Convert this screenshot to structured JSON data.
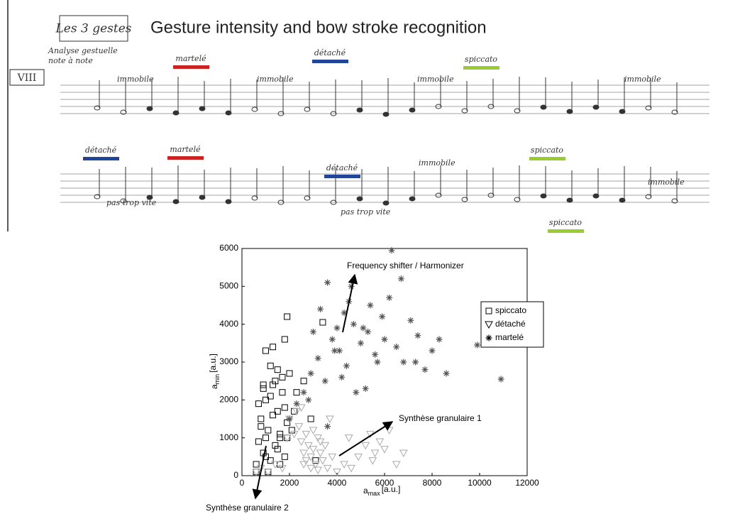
{
  "score": {
    "title": "Gesture intensity and bow stroke recognition",
    "box_label": "Les 3 gestes",
    "notes": [
      "Analyse gestuelle",
      "note à note"
    ],
    "roman": "VIII",
    "strokes": [
      {
        "label": "martelé",
        "color": "#cc2222"
      },
      {
        "label": "détaché",
        "color": "#22449a"
      },
      {
        "label": "spiccato",
        "color": "#99cc33"
      },
      {
        "label": "détaché",
        "color": "#22449a"
      },
      {
        "label": "martelé",
        "color": "#cc2222"
      },
      {
        "label": "détaché",
        "color": "#22449a"
      },
      {
        "label": "spiccato",
        "color": "#99cc33"
      },
      {
        "label": "spiccato",
        "color": "#99cc33"
      }
    ],
    "directions": [
      "immobile",
      "immobile",
      "immobile",
      "immobile",
      "immobile",
      "immobile",
      "pas trop vite",
      "pas trop vite"
    ]
  },
  "chart_data": {
    "type": "scatter",
    "xlabel": {
      "base": "a",
      "sub": "max",
      "unit": "[a.u.]"
    },
    "ylabel": {
      "base": "a",
      "sub": "min",
      "unit": "[a.u.]"
    },
    "xlim": [
      0,
      12000
    ],
    "xticks": [
      0,
      2000,
      4000,
      6000,
      8000,
      10000,
      12000
    ],
    "ylim": [
      0,
      6000
    ],
    "yticks": [
      0,
      1000,
      2000,
      3000,
      4000,
      5000,
      6000
    ],
    "legend": "upper right",
    "annotations": [
      "Frequency shifter / Harmonizer",
      "Synthèse granulaire 1",
      "Synthèse granulaire 2"
    ],
    "series": [
      {
        "name": "spiccato",
        "color": "#000000",
        "marker": "square",
        "x": [
          600,
          700,
          800,
          900,
          1000,
          1100,
          1200,
          1300,
          1400,
          1500,
          1600,
          1700,
          1800,
          1900,
          2000,
          700,
          900,
          1100,
          1300,
          1500,
          1700,
          1900,
          800,
          1000,
          1200,
          1400,
          1600,
          1800,
          2100,
          2300,
          2600,
          2900,
          3100,
          1000,
          1300,
          1800,
          1900,
          3400,
          1500,
          1200,
          900,
          600,
          2200,
          1000,
          1600
        ],
        "values": [
          300,
          900,
          1500,
          600,
          2000,
          1200,
          400,
          2400,
          800,
          1700,
          1100,
          2600,
          500,
          1400,
          2700,
          1900,
          2300,
          100,
          1600,
          700,
          2200,
          1000,
          1300,
          500,
          2100,
          2500,
          300,
          1800,
          1200,
          2200,
          2500,
          1500,
          400,
          3300,
          3400,
          3600,
          4200,
          4050,
          2800,
          2900,
          2400,
          100,
          1700,
          1000,
          1000
        ]
      },
      {
        "name": "détaché",
        "color": "#aaaaaa",
        "marker": "triangle",
        "x": [
          600,
          800,
          1100,
          1400,
          1700,
          2000,
          2300,
          2500,
          2600,
          2700,
          2800,
          2900,
          3000,
          3100,
          3200,
          3300,
          3400,
          3500,
          3600,
          3800,
          2400,
          2700,
          3000,
          3300,
          2600,
          2900,
          3200,
          4000,
          4300,
          4600,
          4900,
          5200,
          5400,
          5600,
          5800,
          6000,
          6200,
          6500,
          6800,
          2200,
          2500,
          1900,
          3700,
          4500,
          5500
        ],
        "values": [
          100,
          200,
          100,
          300,
          200,
          1500,
          1700,
          900,
          600,
          400,
          800,
          500,
          700,
          300,
          1000,
          600,
          400,
          800,
          200,
          500,
          1300,
          1100,
          1200,
          900,
          300,
          200,
          150,
          100,
          300,
          200,
          500,
          800,
          1100,
          600,
          900,
          700,
          1200,
          300,
          600,
          1100,
          1800,
          1000,
          1500,
          1000,
          400
        ]
      },
      {
        "name": "martelé",
        "color": "#555555",
        "marker": "asterisk",
        "x": [
          2000,
          2300,
          2600,
          2900,
          3200,
          3500,
          3800,
          4100,
          4400,
          4700,
          5000,
          5300,
          5600,
          5900,
          6200,
          6500,
          6800,
          7100,
          7400,
          7700,
          8000,
          8300,
          8600,
          3000,
          3300,
          3600,
          3900,
          4200,
          4500,
          4800,
          5100,
          5400,
          5700,
          6000,
          6300,
          6700,
          9900,
          10900,
          4600,
          3600,
          2800,
          4300,
          5200,
          7300,
          4000
        ],
        "values": [
          1500,
          1900,
          2200,
          2700,
          3100,
          2500,
          3600,
          3300,
          2900,
          4000,
          3500,
          3800,
          3200,
          4200,
          4700,
          3400,
          3000,
          4100,
          3700,
          2800,
          3300,
          3600,
          2700,
          3800,
          4400,
          5100,
          3300,
          2600,
          4600,
          2200,
          3900,
          4500,
          3000,
          3600,
          5950,
          5200,
          3450,
          2550,
          5000,
          1300,
          2000,
          4300,
          2300,
          3000,
          3900
        ]
      }
    ]
  }
}
